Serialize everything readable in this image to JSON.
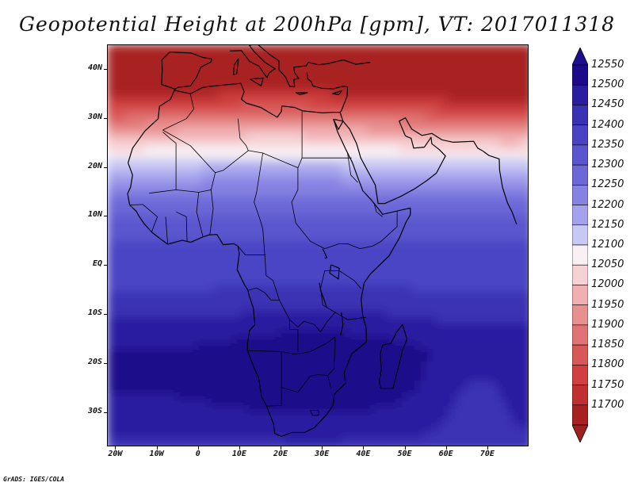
{
  "title": "Geopotential Height at 200hPa [gpm], VT: 2017011318",
  "credit": "GrADS: IGES/COLA",
  "lat_axis": [
    {
      "label": "40N",
      "lat": 40
    },
    {
      "label": "30N",
      "lat": 30
    },
    {
      "label": "20N",
      "lat": 20
    },
    {
      "label": "10N",
      "lat": 10
    },
    {
      "label": "EQ",
      "lat": 0
    },
    {
      "label": "10S",
      "lat": -10
    },
    {
      "label": "20S",
      "lat": -20
    },
    {
      "label": "30S",
      "lat": -30
    }
  ],
  "lon_axis": [
    {
      "label": "20W",
      "lon": -20
    },
    {
      "label": "10W",
      "lon": -10
    },
    {
      "label": "0",
      "lon": 0
    },
    {
      "label": "10E",
      "lon": 10
    },
    {
      "label": "20E",
      "lon": 20
    },
    {
      "label": "30E",
      "lon": 30
    },
    {
      "label": "40E",
      "lon": 40
    },
    {
      "label": "50E",
      "lon": 50
    },
    {
      "label": "60E",
      "lon": 60
    },
    {
      "label": "70E",
      "lon": 70
    }
  ],
  "extent": {
    "lon_min": -22,
    "lon_max": 80,
    "lat_min": -37,
    "lat_max": 45
  },
  "colorbar": {
    "levels": [
      {
        "label": "12550",
        "color": "#1c0a8a"
      },
      {
        "label": "12500",
        "color": "#2a1da0"
      },
      {
        "label": "12450",
        "color": "#3a32b4"
      },
      {
        "label": "12400",
        "color": "#4a44c4"
      },
      {
        "label": "12350",
        "color": "#5a56ce"
      },
      {
        "label": "12300",
        "color": "#6c68d8"
      },
      {
        "label": "12250",
        "color": "#8682e2"
      },
      {
        "label": "12200",
        "color": "#a4a2ec"
      },
      {
        "label": "12150",
        "color": "#c8c8f4"
      },
      {
        "label": "12100",
        "color": "#f8f0f2"
      },
      {
        "label": "12050",
        "color": "#f6d2d4"
      },
      {
        "label": "12000",
        "color": "#f0b0b2"
      },
      {
        "label": "11950",
        "color": "#e89090"
      },
      {
        "label": "11900",
        "color": "#e07474"
      },
      {
        "label": "11850",
        "color": "#d85858"
      },
      {
        "label": "11800",
        "color": "#d04040"
      },
      {
        "label": "11750",
        "color": "#c03030"
      },
      {
        "label": "11700",
        "color": "#a82020"
      }
    ],
    "top_arrow_color": "#1a1090",
    "bottom_arrow_color": "#a02020"
  }
}
